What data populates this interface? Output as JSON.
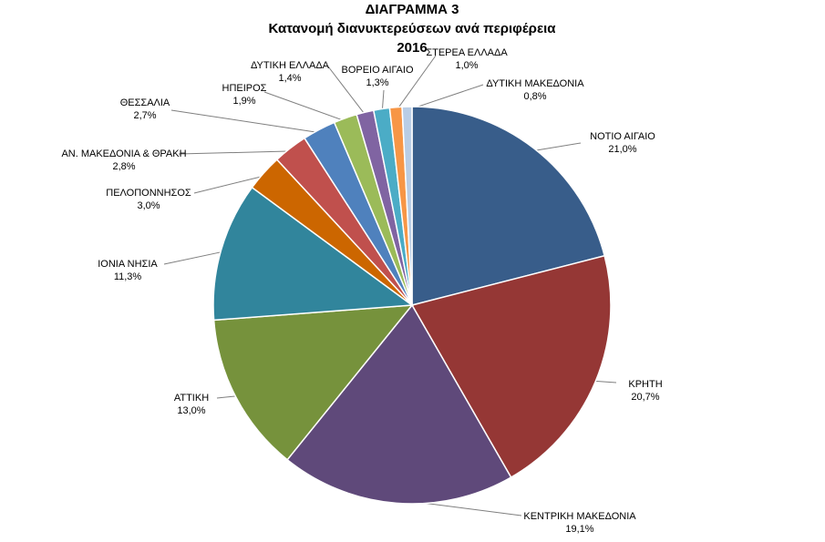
{
  "chart_data": {
    "type": "pie",
    "title": [
      "ΔΙΑΓΡΑΜΜΑ 3",
      "Κατανομή διανυκτερεύσεων ανά περιφέρεια",
      "2016"
    ],
    "unit": "%",
    "slices": [
      {
        "label": "ΝΟΤΙΟ ΑΙΓΑΙΟ",
        "value": 21.0,
        "value_label": "21,0%",
        "color": "#385D8A"
      },
      {
        "label": "ΚΡΗΤΗ",
        "value": 20.7,
        "value_label": "20,7%",
        "color": "#953735"
      },
      {
        "label": "ΚΕΝΤΡΙΚΗ ΜΑΚΕΔΟΝΙΑ",
        "value": 19.1,
        "value_label": "19,1%",
        "color": "#5F497A"
      },
      {
        "label": "ΑΤΤΙΚΗ",
        "value": 13.0,
        "value_label": "13,0%",
        "color": "#76923C"
      },
      {
        "label": "ΙΟΝΙΑ ΝΗΣΙΑ",
        "value": 11.3,
        "value_label": "11,3%",
        "color": "#31859C"
      },
      {
        "label": "ΠΕΛΟΠΟΝΝΗΣΟΣ",
        "value": 3.0,
        "value_label": "3,0%",
        "color": "#CC6600"
      },
      {
        "label": "ΑΝ. ΜΑΚΕΔΟΝΙΑ & ΘΡΑΚΗ",
        "value": 2.8,
        "value_label": "2,8%",
        "color": "#C0504D"
      },
      {
        "label": "ΘΕΣΣΑΛΙΑ",
        "value": 2.7,
        "value_label": "2,7%",
        "color": "#4F81BD"
      },
      {
        "label": "ΗΠΕΙΡΟΣ",
        "value": 1.9,
        "value_label": "1,9%",
        "color": "#9BBB59"
      },
      {
        "label": "ΔΥΤΙΚΗ ΕΛΛΑΔΑ",
        "value": 1.4,
        "value_label": "1,4%",
        "color": "#8064A2"
      },
      {
        "label": "ΒΟΡΕΙΟ ΑΙΓΑΙΟ",
        "value": 1.3,
        "value_label": "1,3%",
        "color": "#4BACC6"
      },
      {
        "label": "ΣΤΕΡΕΑ ΕΛΛΑΔΑ",
        "value": 1.0,
        "value_label": "1,0%",
        "color": "#F79646"
      },
      {
        "label": "ΔΥΤΙΚΗ ΜΑΚΕΔΟΝΙΑ",
        "value": 0.8,
        "value_label": "0,8%",
        "color": "#B9CDE5"
      }
    ],
    "start_angle": "top",
    "direction": "clockwise",
    "legend": "none (data labels with leader lines)"
  }
}
